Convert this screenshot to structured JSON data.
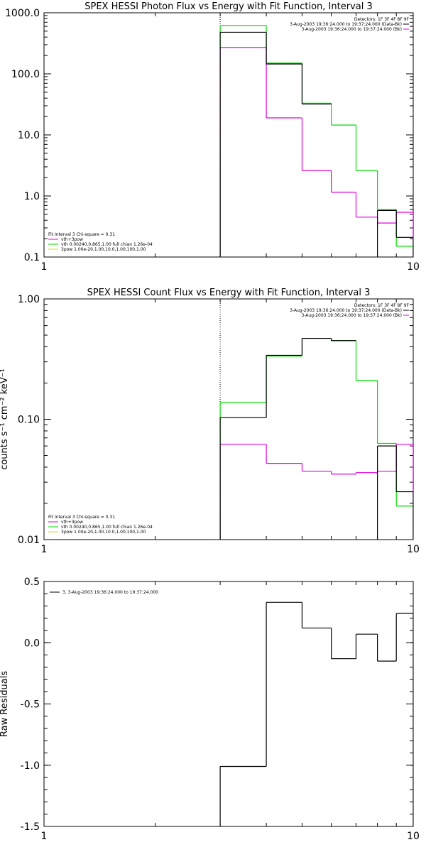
{
  "colors": {
    "black": "#000000",
    "magenta": "#e000e0",
    "green": "#00dd00",
    "yellow": "#d8d800"
  },
  "chart_data": [
    {
      "type": "line",
      "style": "histogram-step",
      "title": "SPEX HESSI Photon Flux vs Energy with Fit Function, Interval 3",
      "xlabel": "",
      "ylabel": "",
      "xscale": "log",
      "yscale": "log",
      "xlim": [
        1,
        10
      ],
      "ylim": [
        0.1,
        1000
      ],
      "xticks": [
        {
          "v": 1,
          "label": "1"
        },
        {
          "v": 10,
          "label": "10"
        }
      ],
      "yticks": [
        {
          "v": 1000,
          "label": "1000.0"
        },
        {
          "v": 100,
          "label": "100.0"
        },
        {
          "v": 10,
          "label": "10.0"
        },
        {
          "v": 1,
          "label": "1.0"
        },
        {
          "v": 0.1,
          "label": "0.1"
        }
      ],
      "vline_x": 3,
      "bin_edges": [
        3,
        4,
        5,
        6,
        7,
        8,
        9,
        10
      ],
      "series": [
        {
          "color": "#000000",
          "values": [
            480,
            145,
            32,
            null,
            null,
            0.58,
            0.21
          ]
        },
        {
          "color": "#00dd00",
          "values": [
            620,
            150,
            33,
            14.5,
            2.6,
            0.6,
            0.15
          ]
        },
        {
          "color": "#e000e0",
          "values": [
            270,
            19,
            2.6,
            1.15,
            0.45,
            0.36,
            0.54
          ]
        }
      ],
      "annotations": {
        "header": "Detectors: 1F 3F 4F 8F 9F",
        "rows": [
          {
            "text": "3-Aug-2003 19:36:24.000 to 19:37:24.000 (Data-Bk)",
            "color": "#000000"
          },
          {
            "text": "3-Aug-2003 19:36:24.000 to 19:37:24.000 (Bk)",
            "color": "#e000e0"
          }
        ]
      },
      "fit_legend": {
        "header": "Fit Interval 3   Chi-square = 0.31",
        "rows": [
          {
            "text": "vth+3pow",
            "color": "#e000e0"
          },
          {
            "text": "vth 0.00240,0.865,1.00   full chian 1.26e-04",
            "color": "#00dd00"
          },
          {
            "text": "3pow 1.00e-20,1.00,10.0,1.00,100,1.00",
            "color": "#d8d800"
          }
        ]
      }
    },
    {
      "type": "line",
      "style": "histogram-step",
      "title": "SPEX HESSI Count Flux vs Energy with Fit Function, Interval 3",
      "xlabel": "",
      "ylabel": "counts s⁻¹ cm⁻² keV⁻¹",
      "xscale": "log",
      "yscale": "log",
      "xlim": [
        1,
        10
      ],
      "ylim": [
        0.01,
        1
      ],
      "xticks": [
        {
          "v": 1,
          "label": "1"
        },
        {
          "v": 10,
          "label": "10"
        }
      ],
      "yticks": [
        {
          "v": 1,
          "label": "1.00"
        },
        {
          "v": 0.1,
          "label": "0.10"
        },
        {
          "v": 0.01,
          "label": "0.01"
        }
      ],
      "vline_x": 3,
      "bin_edges": [
        3,
        4,
        5,
        6,
        7,
        8,
        9,
        10
      ],
      "series": [
        {
          "color": "#000000",
          "values": [
            0.103,
            0.34,
            0.47,
            0.45,
            null,
            0.06,
            0.025
          ]
        },
        {
          "color": "#00dd00",
          "values": [
            0.138,
            0.335,
            0.47,
            0.45,
            0.21,
            0.063,
            0.019
          ]
        },
        {
          "color": "#e000e0",
          "values": [
            0.062,
            0.043,
            0.037,
            0.035,
            0.036,
            0.037,
            0.062
          ]
        }
      ],
      "annotations": {
        "header": "Detectors: 1F 3F 4F 8F 9F",
        "rows": [
          {
            "text": "3-Aug-2003 19:36:24.000 to 19:37:24.000 (Data-Bk)",
            "color": "#000000"
          },
          {
            "text": "3-Aug-2003 19:36:24.000 to 19:37:24.000 (Bk)",
            "color": "#e000e0"
          }
        ]
      },
      "fit_legend": {
        "header": "Fit Interval 3   Chi-square = 0.31",
        "rows": [
          {
            "text": "vth+3pow",
            "color": "#e000e0"
          },
          {
            "text": "vth 0.00240,0.865,1.00   full chian 1.26e-04",
            "color": "#00dd00"
          },
          {
            "text": "3pow 1.00e-20,1.00,10.0,1.00,100,1.00",
            "color": "#d8d800"
          }
        ]
      }
    },
    {
      "type": "line",
      "style": "histogram-step",
      "title": "",
      "xlabel": "",
      "ylabel": "Raw Residuals",
      "xscale": "log",
      "yscale": "linear",
      "xlim": [
        1,
        10
      ],
      "ylim": [
        -1.5,
        0.5
      ],
      "xticks": [
        {
          "v": 1,
          "label": "1"
        },
        {
          "v": 10,
          "label": "10"
        }
      ],
      "yticks": [
        {
          "v": 0.5,
          "label": "0.5"
        },
        {
          "v": 0.0,
          "label": "0.0"
        },
        {
          "v": -0.5,
          "label": "-0.5"
        },
        {
          "v": -1.0,
          "label": "-1.0"
        },
        {
          "v": -1.5,
          "label": "-1.5"
        }
      ],
      "bin_edges": [
        3,
        4,
        5,
        6,
        7,
        8,
        9,
        10
      ],
      "series": [
        {
          "color": "#000000",
          "values": [
            -1.01,
            0.33,
            0.12,
            -0.13,
            0.07,
            -0.15,
            0.24
          ]
        }
      ],
      "legend": {
        "text": "3,  3-Aug-2003 19:36:24.000 to 19:37:24.000",
        "color": "#000000"
      }
    }
  ]
}
